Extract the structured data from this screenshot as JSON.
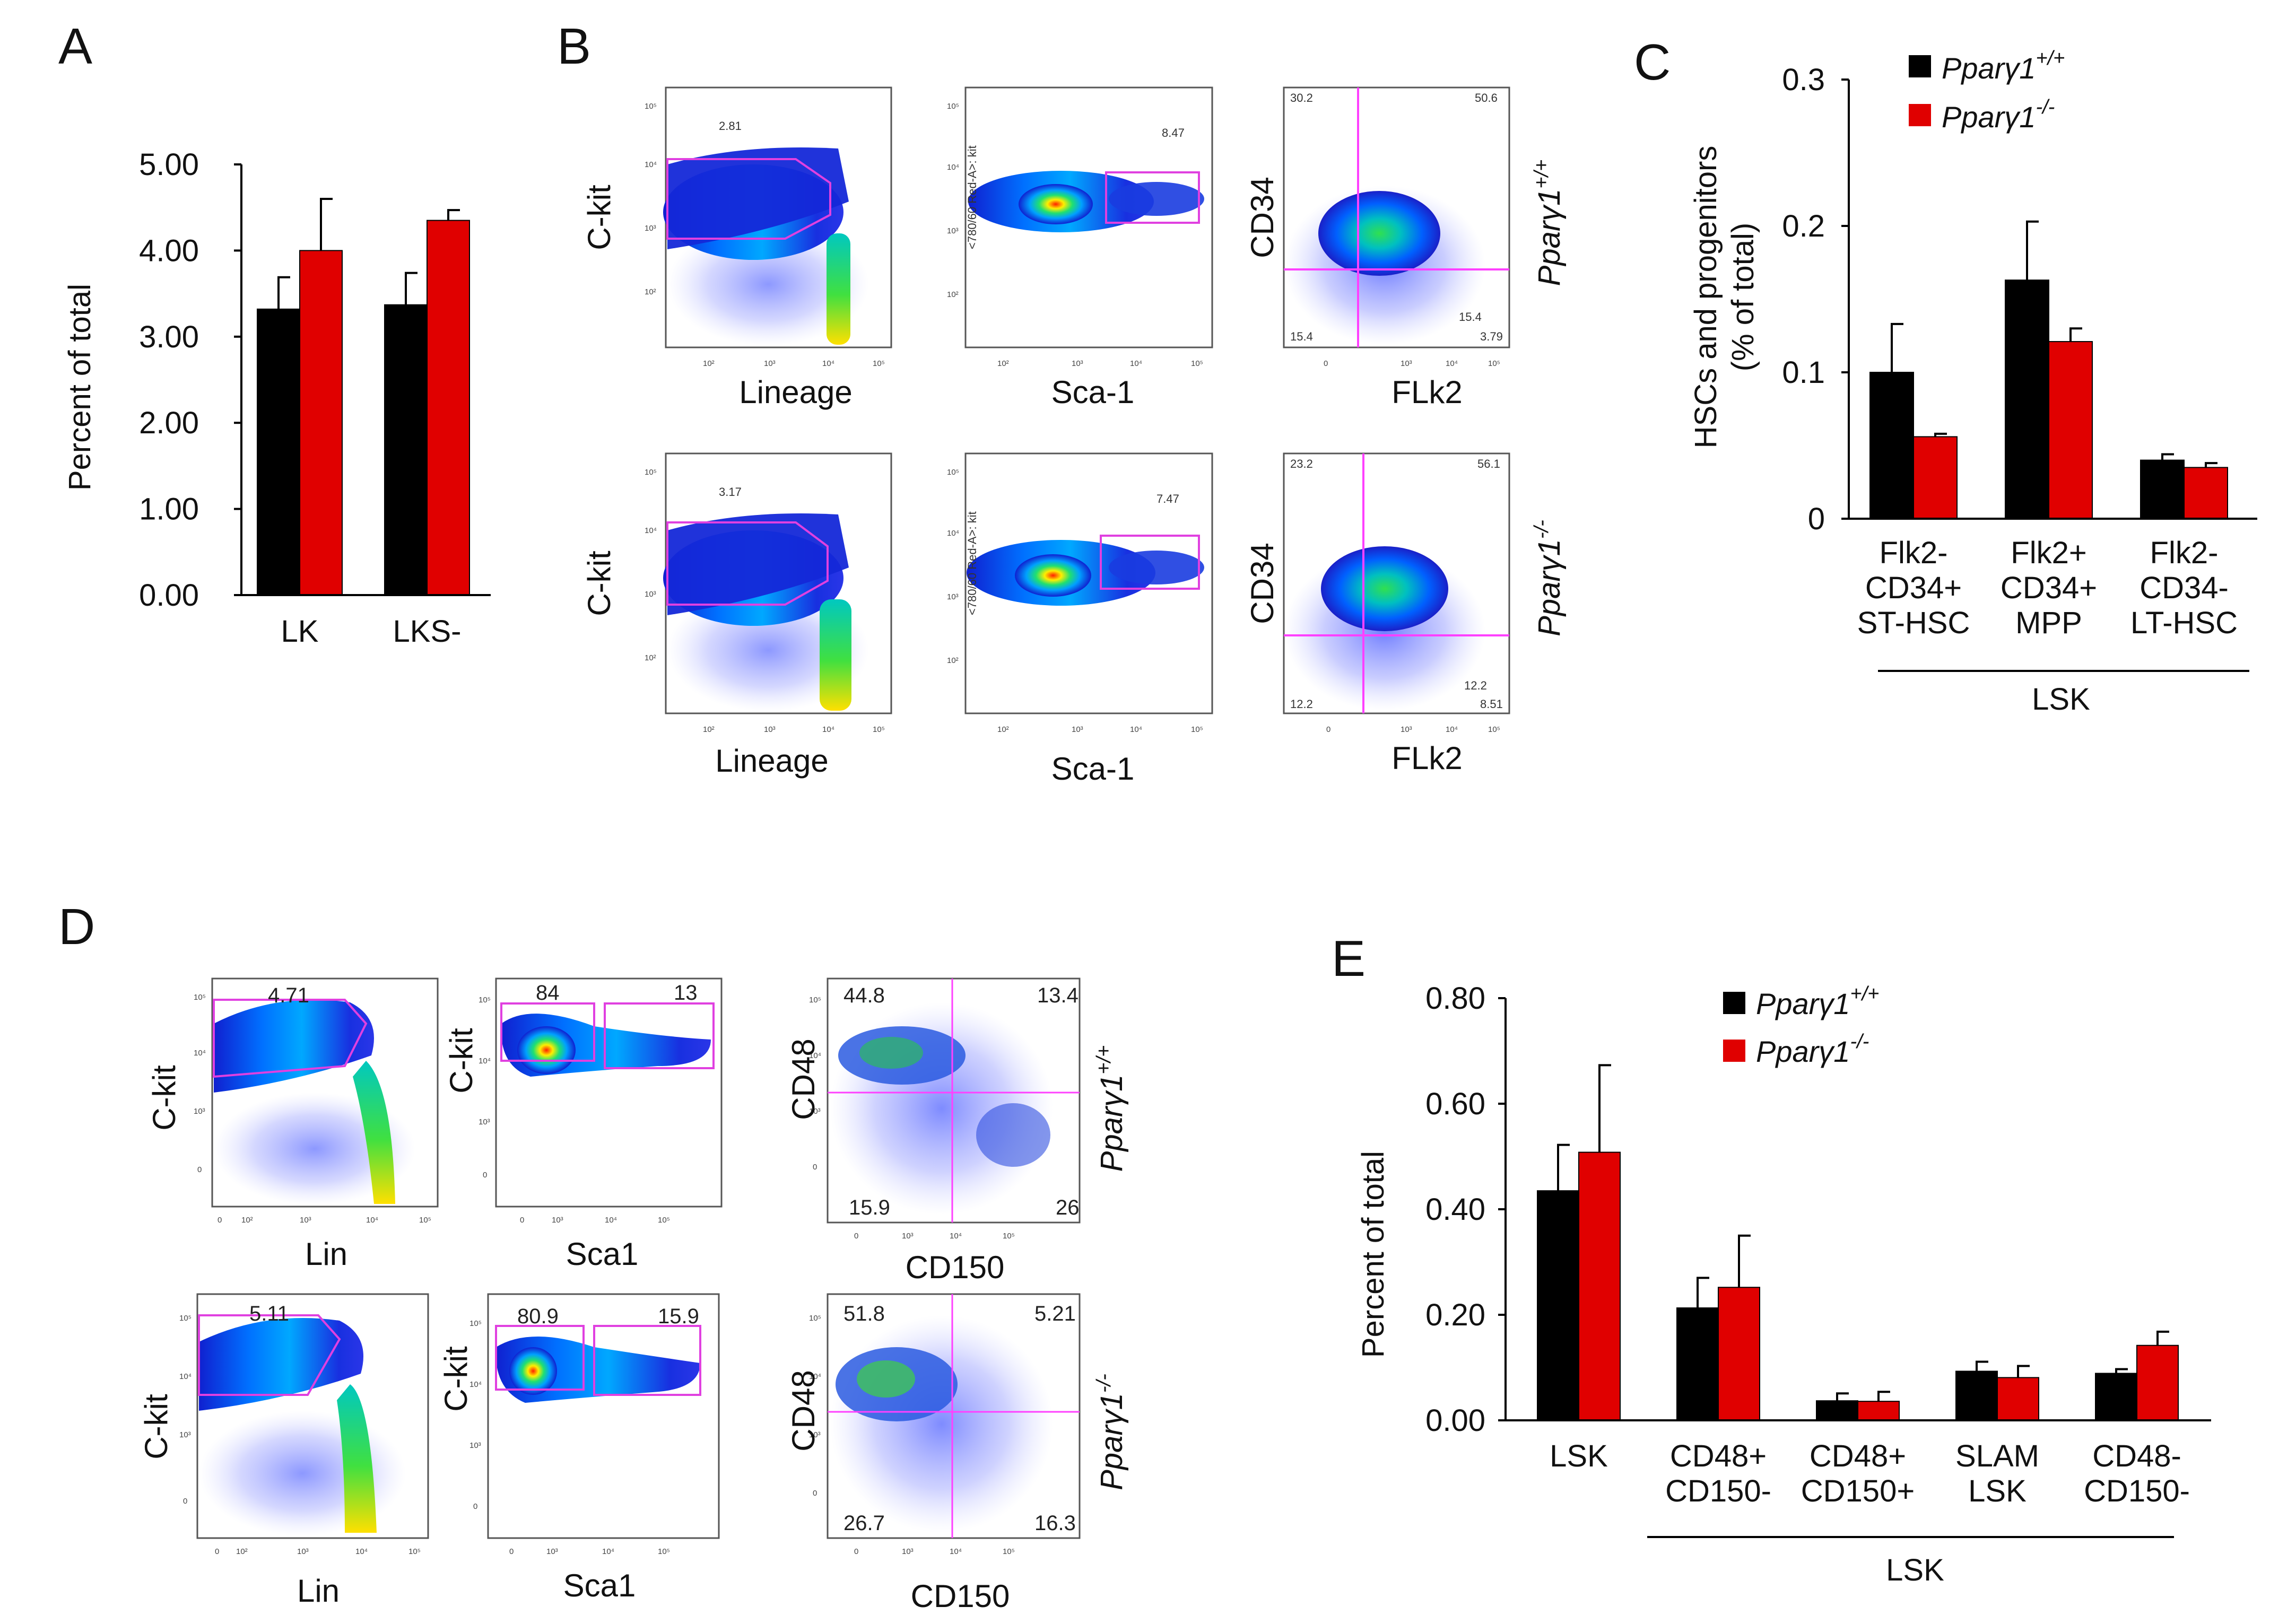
{
  "panels": {
    "A": "A",
    "B": "B",
    "C": "C",
    "D": "D",
    "E": "E"
  },
  "colors": {
    "wt": "#000000",
    "ko": "#e00000",
    "gate": "#e040e0",
    "quad": "#ff40ff"
  },
  "legend": {
    "wt": {
      "base": "Pparγ1",
      "sup": "+/+"
    },
    "ko": {
      "base": "Pparγ1",
      "sup": "-/-"
    }
  },
  "flow_B": {
    "row1": {
      "genotype": {
        "base": "Pparγ1",
        "sup": "+/+"
      },
      "lin_xlabel": "Lineage",
      "lin_ylabel": "C-kit",
      "lin_gate": "2.81",
      "sca_xlabel": "Sca-1",
      "sca_gate": "8.47",
      "sca_ylabel_small": "<780/60 Red-A>: kit",
      "flk_xlabel": "FLk2",
      "flk_ylabel": "CD34",
      "q_tl": "30.2",
      "q_tr": "50.6",
      "q_br": "15.4",
      "q_bl": "15.4",
      "q_br2": "3.79"
    },
    "row2": {
      "genotype": {
        "base": "Pparγ1",
        "sup": "-/-"
      },
      "lin_xlabel": "Lineage",
      "lin_ylabel": "C-kit",
      "lin_gate": "3.17",
      "sca_xlabel": "Sca-1",
      "sca_gate": "7.47",
      "sca_ylabel_small": "<780/60 Red-A>: kit",
      "flk_xlabel": "FLk2",
      "flk_ylabel": "CD34",
      "q_tl": "23.2",
      "q_tr": "56.1",
      "q_br": "12.2",
      "q_bl": "12.2",
      "q_br2": "8.51"
    },
    "ticks": [
      "0",
      "10²",
      "10³",
      "10⁴",
      "10⁵"
    ]
  },
  "flow_D": {
    "row1": {
      "genotype": {
        "base": "Pparγ1",
        "sup": "+/+"
      },
      "lin_xlabel": "Lin",
      "lin_ylabel": "C-kit",
      "lin_gate": "4.71",
      "sca_xlabel": "Sca1",
      "sca_ylabel": "C-kit",
      "sca_gate1": "84",
      "sca_gate2": "13",
      "slam_xlabel": "CD150",
      "slam_ylabel": "CD48",
      "q_tl": "44.8",
      "q_tr": "13.4",
      "q_bl": "15.9",
      "q_br": "26"
    },
    "row2": {
      "genotype": {
        "base": "Pparγ1",
        "sup": "-/-"
      },
      "lin_xlabel": "Lin",
      "lin_ylabel": "C-kit",
      "lin_gate": "5.11",
      "sca_xlabel": "Sca1",
      "sca_ylabel": "C-kit",
      "sca_gate1": "80.9",
      "sca_gate2": "15.9",
      "slam_xlabel": "CD150",
      "slam_ylabel": "CD48",
      "q_tl": "51.8",
      "q_tr": "5.21",
      "q_bl": "26.7",
      "q_br": "16.3"
    }
  },
  "chart_data": [
    {
      "id": "A",
      "type": "bar",
      "categories": [
        "LK",
        "LKS-"
      ],
      "series": [
        {
          "name": "Pparγ1+/+",
          "values": [
            3.32,
            3.37
          ],
          "errors": [
            0.37,
            0.37
          ]
        },
        {
          "name": "Pparγ1-/-",
          "values": [
            4.0,
            4.35
          ],
          "errors": [
            0.6,
            0.12
          ]
        }
      ],
      "ylabel": "Percent of total",
      "ylim": [
        0,
        5
      ],
      "yticks": [
        "0.00",
        "1.00",
        "2.00",
        "3.00",
        "4.00",
        "5.00"
      ],
      "ytick_values": [
        0,
        1,
        2,
        3,
        4,
        5
      ]
    },
    {
      "id": "C",
      "type": "bar",
      "categories": [
        [
          "Flk2-",
          "CD34+",
          "ST-HSC"
        ],
        [
          "Flk2+",
          "CD34+",
          "MPP"
        ],
        [
          "Flk2-",
          "CD34-",
          "LT-HSC"
        ]
      ],
      "group_label": "LSK",
      "series": [
        {
          "name": "Pparγ1+/+",
          "values": [
            0.1,
            0.163,
            0.04
          ],
          "errors": [
            0.033,
            0.04,
            0.004
          ]
        },
        {
          "name": "Pparγ1-/-",
          "values": [
            0.056,
            0.121,
            0.035
          ],
          "errors": [
            0.002,
            0.009,
            0.003
          ]
        }
      ],
      "ylabel": [
        "HSCs and progenitors",
        "(% of total)"
      ],
      "ylim": [
        0,
        0.3
      ],
      "yticks": [
        "0",
        "0.1",
        "0.2",
        "0.3"
      ],
      "ytick_values": [
        0,
        0.1,
        0.2,
        0.3
      ]
    },
    {
      "id": "E",
      "type": "bar",
      "categories": [
        [
          "LSK"
        ],
        [
          "CD48+",
          "CD150-"
        ],
        [
          "CD48+",
          "CD150+"
        ],
        [
          "SLAM",
          "LSK"
        ],
        [
          "CD48-",
          "CD150-"
        ]
      ],
      "group_label": "LSK",
      "series": [
        {
          "name": "Pparγ1+/+",
          "values": [
            0.435,
            0.213,
            0.037,
            0.093,
            0.089
          ],
          "errors": [
            0.087,
            0.057,
            0.014,
            0.018,
            0.008
          ]
        },
        {
          "name": "Pparγ1-/-",
          "values": [
            0.508,
            0.252,
            0.036,
            0.081,
            0.142
          ],
          "errors": [
            0.165,
            0.098,
            0.018,
            0.022,
            0.026
          ]
        }
      ],
      "ylabel": "Percent of total",
      "ylim": [
        0,
        0.8
      ],
      "yticks": [
        "0.00",
        "0.20",
        "0.40",
        "0.60",
        "0.80"
      ],
      "ytick_values": [
        0,
        0.2,
        0.4,
        0.6,
        0.8
      ]
    }
  ]
}
